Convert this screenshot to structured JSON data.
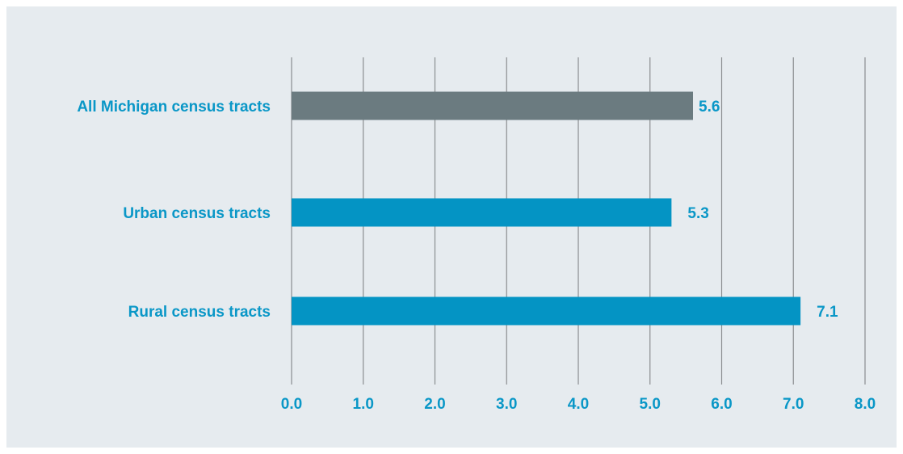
{
  "chart_data": {
    "type": "bar",
    "orientation": "horizontal",
    "categories": [
      "All Michigan census tracts",
      "Urban census tracts",
      "Rural census tracts"
    ],
    "values": [
      5.6,
      5.3,
      7.1
    ],
    "value_labels": [
      "5.6",
      "5.3",
      "7.1"
    ],
    "bar_colors": [
      "#6b7b80",
      "#0494c4",
      "#0494c4"
    ],
    "x_ticks": [
      "0.0",
      "1.0",
      "2.0",
      "3.0",
      "4.0",
      "5.0",
      "6.0",
      "7.0",
      "8.0"
    ],
    "xlim": [
      0,
      8
    ],
    "grid": "vertical",
    "title": "",
    "xlabel": "",
    "ylabel": ""
  },
  "colors": {
    "background": "#e6ebef",
    "text": "#0a97c7",
    "gridline": "#8a8d90"
  }
}
